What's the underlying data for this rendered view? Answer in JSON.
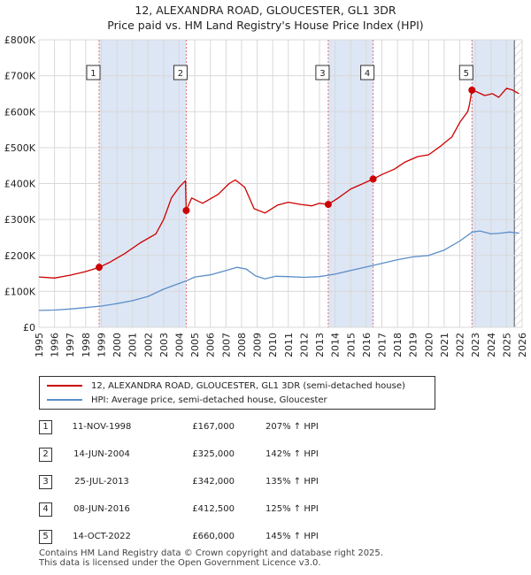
{
  "title_line1": "12, ALEXANDRA ROAD, GLOUCESTER, GL1 3DR",
  "title_line2": "Price paid vs. HM Land Registry's House Price Index (HPI)",
  "colors": {
    "property": "#cc0000",
    "hpi": "#5b8ec9",
    "shade": "#dde6f4",
    "grid": "#d9d9d9",
    "vline": "#e07070"
  },
  "chart_data": {
    "type": "line",
    "xlim": [
      1995,
      2026
    ],
    "ylim": [
      0,
      800000
    ],
    "x_ticks": [
      "1995",
      "1996",
      "1997",
      "1998",
      "1999",
      "2000",
      "2001",
      "2002",
      "2003",
      "2004",
      "2005",
      "2006",
      "2007",
      "2008",
      "2009",
      "2010",
      "2011",
      "2012",
      "2013",
      "2014",
      "2015",
      "2016",
      "2017",
      "2018",
      "2019",
      "2020",
      "2021",
      "2022",
      "2023",
      "2024",
      "2025",
      "2026"
    ],
    "y_ticks": [
      {
        "value": 0,
        "label": "£0"
      },
      {
        "value": 100000,
        "label": "£100K"
      },
      {
        "value": 200000,
        "label": "£200K"
      },
      {
        "value": 300000,
        "label": "£300K"
      },
      {
        "value": 400000,
        "label": "£400K"
      },
      {
        "value": 500000,
        "label": "£500K"
      },
      {
        "value": 600000,
        "label": "£600K"
      },
      {
        "value": 700000,
        "label": "£700K"
      },
      {
        "value": 800000,
        "label": "£800K"
      }
    ],
    "shaded_ranges": [
      [
        1998.86,
        2004.45
      ],
      [
        2013.56,
        2016.44
      ],
      [
        2022.78,
        2025.5
      ]
    ],
    "hatch_from": 2025.5,
    "series": [
      {
        "name": "12, ALEXANDRA ROAD, GLOUCESTER, GL1 3DR (semi-detached house)",
        "color": "#cc0000",
        "points": [
          [
            1995.0,
            140000
          ],
          [
            1996.0,
            137000
          ],
          [
            1997.0,
            145000
          ],
          [
            1998.0,
            155000
          ],
          [
            1998.86,
            167000
          ],
          [
            1999.5,
            180000
          ],
          [
            2000.5,
            205000
          ],
          [
            2001.5,
            235000
          ],
          [
            2002.5,
            260000
          ],
          [
            2003.0,
            300000
          ],
          [
            2003.5,
            360000
          ],
          [
            2004.0,
            390000
          ],
          [
            2004.4,
            408000
          ],
          [
            2004.45,
            325000
          ],
          [
            2004.8,
            360000
          ],
          [
            2005.5,
            345000
          ],
          [
            2006.5,
            370000
          ],
          [
            2007.2,
            400000
          ],
          [
            2007.6,
            410000
          ],
          [
            2008.2,
            390000
          ],
          [
            2008.8,
            330000
          ],
          [
            2009.5,
            318000
          ],
          [
            2010.3,
            340000
          ],
          [
            2011.0,
            348000
          ],
          [
            2011.8,
            342000
          ],
          [
            2012.5,
            338000
          ],
          [
            2013.0,
            345000
          ],
          [
            2013.56,
            342000
          ],
          [
            2014.2,
            360000
          ],
          [
            2015.0,
            385000
          ],
          [
            2015.8,
            400000
          ],
          [
            2016.44,
            412500
          ],
          [
            2017.0,
            425000
          ],
          [
            2017.8,
            440000
          ],
          [
            2018.5,
            460000
          ],
          [
            2019.3,
            475000
          ],
          [
            2020.0,
            480000
          ],
          [
            2020.8,
            505000
          ],
          [
            2021.5,
            530000
          ],
          [
            2022.0,
            570000
          ],
          [
            2022.5,
            600000
          ],
          [
            2022.6,
            615000
          ],
          [
            2022.78,
            660000
          ],
          [
            2023.1,
            655000
          ],
          [
            2023.6,
            645000
          ],
          [
            2024.1,
            650000
          ],
          [
            2024.5,
            640000
          ],
          [
            2025.0,
            665000
          ],
          [
            2025.4,
            660000
          ],
          [
            2025.8,
            650000
          ]
        ]
      },
      {
        "name": "HPI: Average price, semi-detached house, Gloucester",
        "color": "#5b8ec9",
        "points": [
          [
            1995.0,
            47000
          ],
          [
            1996.0,
            48000
          ],
          [
            1997.0,
            51000
          ],
          [
            1998.0,
            55000
          ],
          [
            1999.0,
            59000
          ],
          [
            2000.0,
            66000
          ],
          [
            2001.0,
            74000
          ],
          [
            2002.0,
            86000
          ],
          [
            2003.0,
            106000
          ],
          [
            2004.0,
            122000
          ],
          [
            2004.5,
            130000
          ],
          [
            2005.0,
            140000
          ],
          [
            2006.0,
            146000
          ],
          [
            2007.0,
            158000
          ],
          [
            2007.7,
            167000
          ],
          [
            2008.3,
            162000
          ],
          [
            2008.9,
            143000
          ],
          [
            2009.5,
            135000
          ],
          [
            2010.2,
            142000
          ],
          [
            2011.0,
            141000
          ],
          [
            2012.0,
            139000
          ],
          [
            2013.0,
            141000
          ],
          [
            2014.0,
            148000
          ],
          [
            2015.0,
            158000
          ],
          [
            2016.0,
            168000
          ],
          [
            2017.0,
            178000
          ],
          [
            2018.0,
            188000
          ],
          [
            2019.0,
            196000
          ],
          [
            2020.0,
            200000
          ],
          [
            2021.0,
            215000
          ],
          [
            2022.0,
            240000
          ],
          [
            2022.8,
            265000
          ],
          [
            2023.3,
            268000
          ],
          [
            2024.0,
            260000
          ],
          [
            2024.6,
            262000
          ],
          [
            2025.2,
            265000
          ],
          [
            2025.8,
            262000
          ]
        ]
      }
    ],
    "sales": [
      {
        "label": "1",
        "x": 1998.86,
        "y": 167000
      },
      {
        "label": "2",
        "x": 2004.45,
        "y": 325000
      },
      {
        "label": "3",
        "x": 2013.56,
        "y": 342000
      },
      {
        "label": "4",
        "x": 2016.44,
        "y": 412500
      },
      {
        "label": "5",
        "x": 2022.78,
        "y": 660000
      }
    ]
  },
  "legend": {
    "property_label": "12, ALEXANDRA ROAD, GLOUCESTER, GL1 3DR (semi-detached house)",
    "hpi_label": "HPI: Average price, semi-detached house, Gloucester"
  },
  "transactions": [
    {
      "num": "1",
      "date": "11-NOV-1998",
      "price": "£167,000",
      "hpi": "207% ↑ HPI"
    },
    {
      "num": "2",
      "date": "14-JUN-2004",
      "price": "£325,000",
      "hpi": "142% ↑ HPI"
    },
    {
      "num": "3",
      "date": "25-JUL-2013",
      "price": "£342,000",
      "hpi": "135% ↑ HPI"
    },
    {
      "num": "4",
      "date": "08-JUN-2016",
      "price": "£412,500",
      "hpi": "125% ↑ HPI"
    },
    {
      "num": "5",
      "date": "14-OCT-2022",
      "price": "£660,000",
      "hpi": "145% ↑ HPI"
    }
  ],
  "footer": {
    "line1": "Contains HM Land Registry data © Crown copyright and database right 2025.",
    "line2": "This data is licensed under the Open Government Licence v3.0."
  }
}
